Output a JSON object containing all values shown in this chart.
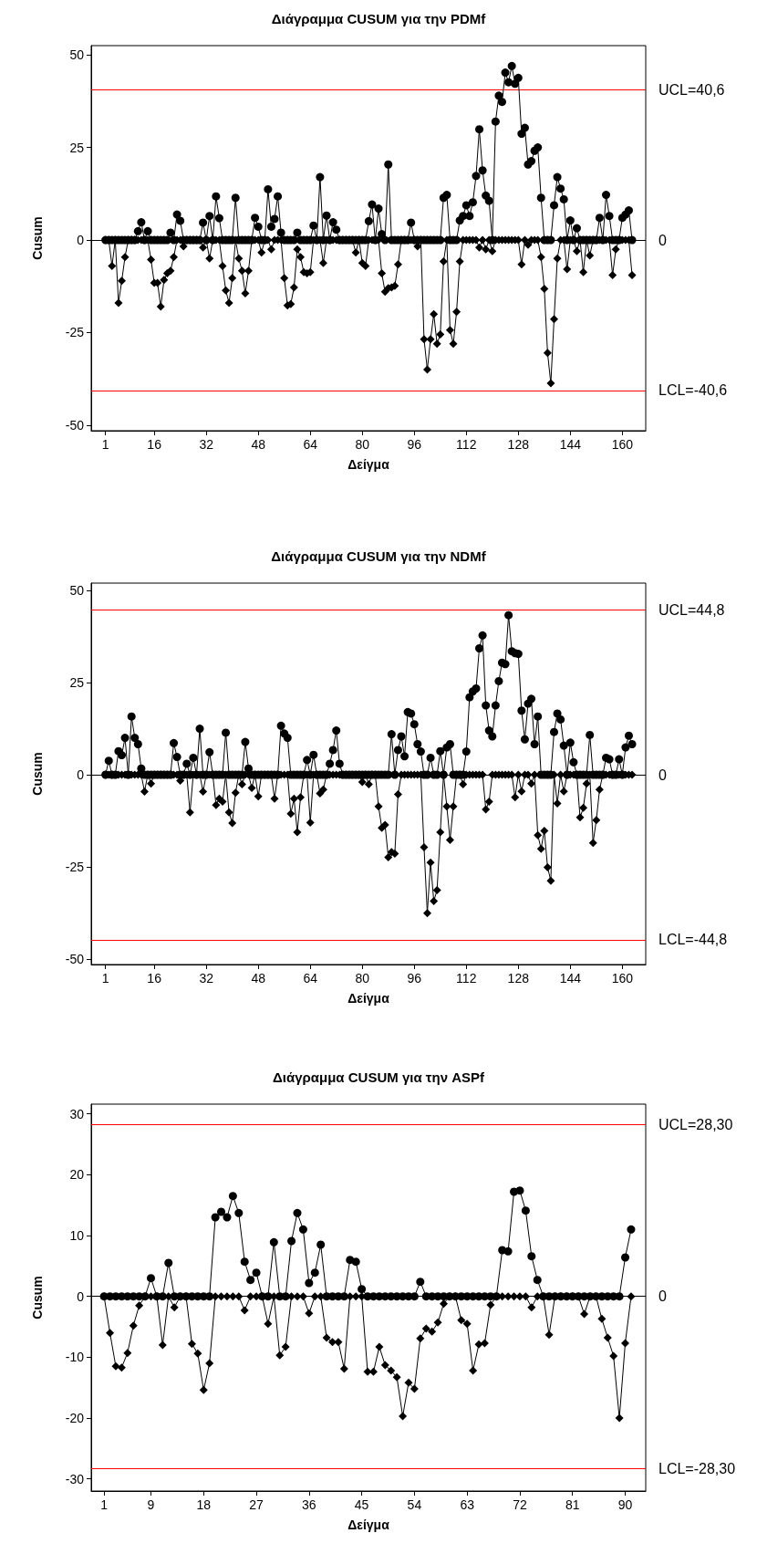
{
  "chart_data": [
    {
      "type": "line",
      "title": "Διάγραμμα CUSUM για την PDMf",
      "xlabel": "Δείγμα",
      "ylabel": "Cusum",
      "x": [
        1,
        2,
        3,
        4,
        5,
        6,
        7,
        8,
        9,
        10,
        11,
        12,
        13,
        14,
        15,
        16,
        17,
        18,
        19,
        20,
        21,
        22,
        23,
        24,
        25,
        26,
        27,
        28,
        29,
        30,
        31,
        32,
        33,
        34,
        35,
        36,
        37,
        38,
        39,
        40,
        41,
        42,
        43,
        44,
        45,
        46,
        47,
        48,
        49,
        50,
        51,
        52,
        53,
        54,
        55,
        56,
        57,
        58,
        59,
        60,
        61,
        62,
        63,
        64,
        65,
        66,
        67,
        68,
        69,
        70,
        71,
        72,
        73,
        74,
        75,
        76,
        77,
        78,
        79,
        80,
        81,
        82,
        83,
        84,
        85,
        86,
        87,
        88,
        89,
        90,
        91,
        92,
        93,
        94,
        95,
        96,
        97,
        98,
        99,
        100,
        101,
        102,
        103,
        104,
        105,
        106,
        107,
        108,
        109,
        110,
        111,
        112,
        113,
        114,
        115,
        116,
        117,
        118,
        119,
        120,
        121,
        122,
        123,
        124,
        125,
        126,
        127,
        128,
        129,
        130,
        131,
        132,
        133,
        134,
        135,
        136,
        137,
        138,
        139,
        140,
        141,
        142,
        143,
        144,
        145,
        146,
        147,
        148,
        149,
        150,
        151,
        152,
        153,
        154,
        155,
        156,
        157,
        158,
        159,
        160,
        161,
        162,
        163
      ],
      "xlim": [
        -3.4,
        167.2
      ],
      "xticks": [
        1,
        16,
        32,
        48,
        64,
        80,
        96,
        112,
        128,
        144,
        160
      ],
      "ylim": [
        -51.5,
        52.5
      ],
      "yticks": [
        -50,
        -25,
        0,
        25,
        50
      ],
      "series": [
        {
          "color": "#000000",
          "marker": "circle",
          "values": [
            0,
            0,
            0,
            0,
            0,
            0,
            0,
            0,
            0,
            0,
            2.4,
            4.8,
            0,
            2.4,
            0,
            0,
            0,
            0,
            0,
            0,
            2,
            0,
            6.9,
            5.2,
            0,
            0,
            0,
            0,
            0,
            0,
            4.7,
            0,
            6.5,
            0,
            11.8,
            5.9,
            0,
            0,
            0,
            0,
            11.4,
            0,
            0,
            0,
            0,
            0,
            6,
            3.6,
            0,
            0,
            13.7,
            3.6,
            5.7,
            11.8,
            2,
            0,
            0,
            0,
            0,
            2,
            0,
            0,
            0,
            0,
            3.9,
            0,
            17,
            0,
            6.6,
            0,
            4.8,
            2.8,
            0,
            0,
            0,
            0,
            0,
            0,
            0,
            0,
            0,
            5.1,
            9.6,
            0,
            8.5,
            1.6,
            0,
            20.4,
            0,
            0,
            0,
            0,
            0,
            0,
            4.7,
            0,
            0,
            0,
            0,
            0,
            0,
            0,
            0,
            0,
            11.4,
            12.2,
            0,
            0,
            0,
            5.3,
            6.5,
            9.4,
            6.5,
            10.2,
            17.3,
            29.9,
            18.8,
            12,
            10.6,
            0,
            32,
            39,
            37.3,
            45.2,
            42.6,
            47,
            42.2,
            43.8,
            28.7,
            30.3,
            20.4,
            21.3,
            24.1,
            25,
            11.4,
            0,
            0,
            0,
            9.4,
            17,
            13.9,
            11,
            0,
            5.3,
            0,
            3.2,
            0,
            0,
            0,
            0,
            0,
            0,
            6,
            0,
            12.2,
            6.5,
            0,
            0,
            0,
            6,
            6.9,
            8,
            0
          ]
        },
        {
          "color": "#000000",
          "marker": "diamond",
          "values": [
            0,
            0,
            -7,
            0,
            -17,
            -11,
            -4.6,
            0,
            0,
            0,
            0,
            0,
            0,
            0,
            -5.3,
            -11.6,
            -11.6,
            -18,
            -10.8,
            -9,
            -8.3,
            -4.6,
            0,
            0,
            -1.7,
            0,
            0,
            0,
            0,
            0,
            -2,
            0,
            -5,
            0,
            0,
            0,
            -7,
            -13.6,
            -17,
            -10.3,
            0,
            -5,
            -8.3,
            -14.4,
            -8.3,
            0,
            0,
            0,
            -3.4,
            0,
            0,
            -2.5,
            0,
            0,
            0,
            -10.3,
            -17.7,
            -17.3,
            -12.8,
            -2.5,
            -4.6,
            -8.7,
            -9,
            -8.7,
            0,
            0,
            0,
            -6.2,
            0,
            0,
            0,
            0,
            0,
            0,
            0,
            0,
            0,
            -3.4,
            0,
            -6.2,
            -7,
            0,
            0,
            0,
            0,
            -9,
            -14,
            -13,
            -12.8,
            -12.4,
            -6.6,
            0,
            0,
            0,
            0,
            0,
            -1.7,
            0,
            -26.8,
            -35,
            -26.8,
            -20,
            -28,
            -25.5,
            -5.8,
            0,
            -24.3,
            -28,
            -19.4,
            -5.8,
            0,
            0,
            0,
            0,
            0,
            -2,
            0,
            -2.5,
            0,
            -3,
            0,
            0,
            0,
            0,
            0,
            0,
            0,
            0,
            -6.6,
            0,
            -1.3,
            0,
            0,
            0,
            -4.6,
            -13.2,
            -30.5,
            -38.7,
            -21.4,
            -5,
            0,
            0,
            -7.9,
            0,
            0,
            -3,
            0,
            -8.7,
            0,
            -4.2,
            0,
            0,
            0,
            0,
            0,
            0,
            -9.5,
            -2.5,
            0,
            0,
            0,
            0,
            -9.5
          ]
        }
      ],
      "ref_lines": [
        {
          "axis": "y",
          "value": 40.6,
          "label": "UCL=40,6",
          "color": "#ff0000"
        },
        {
          "axis": "y",
          "value": 0,
          "label": "0",
          "color": "#000000"
        },
        {
          "axis": "y",
          "value": -40.6,
          "label": "LCL=-40,6",
          "color": "#ff0000"
        }
      ]
    },
    {
      "type": "line",
      "title": "Διάγραμμα CUSUM για την NDMf",
      "xlabel": "Δείγμα",
      "ylabel": "Cusum",
      "x": [
        1,
        2,
        3,
        4,
        5,
        6,
        7,
        8,
        9,
        10,
        11,
        12,
        13,
        14,
        15,
        16,
        17,
        18,
        19,
        20,
        21,
        22,
        23,
        24,
        25,
        26,
        27,
        28,
        29,
        30,
        31,
        32,
        33,
        34,
        35,
        36,
        37,
        38,
        39,
        40,
        41,
        42,
        43,
        44,
        45,
        46,
        47,
        48,
        49,
        50,
        51,
        52,
        53,
        54,
        55,
        56,
        57,
        58,
        59,
        60,
        61,
        62,
        63,
        64,
        65,
        66,
        67,
        68,
        69,
        70,
        71,
        72,
        73,
        74,
        75,
        76,
        77,
        78,
        79,
        80,
        81,
        82,
        83,
        84,
        85,
        86,
        87,
        88,
        89,
        90,
        91,
        92,
        93,
        94,
        95,
        96,
        97,
        98,
        99,
        100,
        101,
        102,
        103,
        104,
        105,
        106,
        107,
        108,
        109,
        110,
        111,
        112,
        113,
        114,
        115,
        116,
        117,
        118,
        119,
        120,
        121,
        122,
        123,
        124,
        125,
        126,
        127,
        128,
        129,
        130,
        131,
        132,
        133,
        134,
        135,
        136,
        137,
        138,
        139,
        140,
        141,
        142,
        143,
        144,
        145,
        146,
        147,
        148,
        149,
        150,
        151,
        152,
        153,
        154,
        155,
        156,
        157,
        158,
        159,
        160,
        161,
        162,
        163
      ],
      "xlim": [
        -3.4,
        167.2
      ],
      "xticks": [
        1,
        16,
        32,
        48,
        64,
        80,
        96,
        112,
        128,
        144,
        160
      ],
      "ylim": [
        -51.5,
        52
      ],
      "yticks": [
        -50,
        -25,
        0,
        25,
        50
      ],
      "series": [
        {
          "color": "#000000",
          "marker": "circle",
          "values": [
            0,
            3.8,
            0,
            0,
            6.4,
            5.3,
            10,
            0,
            15.8,
            10,
            8.3,
            1.7,
            0,
            0,
            0,
            0,
            0,
            0,
            0,
            0,
            0,
            8.6,
            4.8,
            0,
            0,
            3,
            0,
            4.6,
            0,
            12.5,
            0,
            0,
            6.1,
            0,
            0,
            0,
            0,
            11.4,
            0,
            0,
            0,
            0,
            0,
            8.9,
            1.7,
            0,
            0,
            0,
            0,
            0,
            0,
            0,
            0,
            0,
            13.3,
            11.2,
            10,
            0,
            0,
            0,
            0,
            0,
            4,
            0,
            5.4,
            0,
            0,
            0,
            0,
            3,
            6.7,
            12,
            3,
            0,
            0,
            0,
            0,
            0,
            0,
            0,
            0,
            0,
            0,
            0,
            0,
            0,
            0,
            0,
            11,
            0,
            6.7,
            10.4,
            5,
            17,
            16.6,
            13.7,
            8.3,
            6.3,
            0,
            0,
            4.6,
            0,
            0,
            6.4,
            0,
            7.4,
            8.3,
            0,
            0,
            0,
            0,
            6.3,
            21,
            22.6,
            23.4,
            34.3,
            37.8,
            18.8,
            12,
            10.4,
            18.8,
            25.4,
            30.4,
            30,
            43.3,
            33.5,
            33,
            32.8,
            17.4,
            9.6,
            19.3,
            20.6,
            8.3,
            15.8,
            0,
            0,
            0,
            0,
            11.6,
            16.6,
            15,
            7.9,
            0,
            8.7,
            3.4,
            0,
            0,
            0,
            0,
            10.8,
            0,
            0,
            0,
            0,
            4.6,
            4.2,
            0,
            0,
            4.2,
            0,
            7.4,
            10.6,
            8.3
          ]
        },
        {
          "color": "#000000",
          "marker": "diamond",
          "values": [
            0,
            0,
            0,
            0,
            0,
            0,
            0,
            0,
            0,
            0,
            0,
            0,
            -4.6,
            0,
            -2.4,
            0,
            0,
            0,
            0,
            0,
            0,
            0,
            0,
            -1.6,
            0,
            0,
            -10.2,
            0,
            0,
            0,
            -4.6,
            0,
            0,
            0,
            -8.2,
            -6.5,
            -7.3,
            0,
            -10.2,
            -13.1,
            -4.9,
            0,
            -2.6,
            0,
            0,
            -3.6,
            0,
            -5.9,
            0,
            0,
            0,
            0,
            -6.5,
            0,
            0,
            0,
            0,
            -10.6,
            -6.5,
            -15.6,
            -6.1,
            0,
            0,
            -13,
            0,
            0,
            -5.1,
            -4,
            0,
            0,
            0,
            0,
            0,
            0,
            0,
            0,
            0,
            0,
            0,
            -2,
            0,
            -2.6,
            0,
            0,
            -8.6,
            -14.4,
            -13.6,
            -22.4,
            -21,
            -21.4,
            -5.3,
            0,
            0,
            0,
            0,
            0,
            0,
            0,
            -19.7,
            -37.6,
            -23.8,
            -34.3,
            -31.3,
            -15.6,
            0,
            -8.6,
            -17.7,
            -8.6,
            0,
            0,
            -2.6,
            0,
            0,
            0,
            0,
            0,
            0,
            -9.4,
            -7.3,
            0,
            0,
            0,
            0,
            0,
            0,
            0,
            -6.1,
            0,
            -4.5,
            0,
            0,
            -2.4,
            0,
            -16.4,
            -20.1,
            -15.2,
            -25.1,
            -28.8,
            0,
            -7.8,
            0,
            -4.5,
            0,
            0,
            0,
            0,
            -11.6,
            -9,
            -2.4,
            0,
            -18.5,
            -12.3,
            -4,
            0,
            0,
            0,
            0,
            0,
            0,
            0,
            0,
            0,
            0
          ]
        }
      ],
      "ref_lines": [
        {
          "axis": "y",
          "value": 44.8,
          "label": "UCL=44,8",
          "color": "#ff0000"
        },
        {
          "axis": "y",
          "value": 0,
          "label": "0",
          "color": "#000000"
        },
        {
          "axis": "y",
          "value": -44.8,
          "label": "LCL=-44,8",
          "color": "#ff0000"
        }
      ]
    },
    {
      "type": "line",
      "title": "Διάγραμμα CUSUM για την ASPf",
      "xlabel": "Δείγμα",
      "ylabel": "Cusum",
      "x": [
        1,
        2,
        3,
        4,
        5,
        6,
        7,
        8,
        9,
        10,
        11,
        12,
        13,
        14,
        15,
        16,
        17,
        18,
        19,
        20,
        21,
        22,
        23,
        24,
        25,
        26,
        27,
        28,
        29,
        30,
        31,
        32,
        33,
        34,
        35,
        36,
        37,
        38,
        39,
        40,
        41,
        42,
        43,
        44,
        45,
        46,
        47,
        48,
        49,
        50,
        51,
        52,
        53,
        54,
        55,
        56,
        57,
        58,
        59,
        60,
        61,
        62,
        63,
        64,
        65,
        66,
        67,
        68,
        69,
        70,
        71,
        72,
        73,
        74,
        75,
        76,
        77,
        78,
        79,
        80,
        81,
        82,
        83,
        84,
        85,
        86,
        87,
        88,
        89,
        90,
        91
      ],
      "xlim": [
        -1.2,
        93.5
      ],
      "xticks": [
        1,
        9,
        18,
        27,
        36,
        45,
        54,
        63,
        72,
        81,
        90
      ],
      "ylim": [
        -32,
        31.6
      ],
      "yticks": [
        -30,
        -20,
        -10,
        0,
        10,
        20,
        30
      ],
      "series": [
        {
          "color": "#000000",
          "marker": "diamond",
          "values": [
            0,
            -6,
            -11.5,
            -11.7,
            -9.3,
            -4.8,
            -1.5,
            0,
            0,
            0,
            -8,
            0,
            -1.8,
            0,
            0,
            -7.8,
            -9.4,
            -15.4,
            -11,
            0,
            0,
            0,
            0,
            0,
            -2.3,
            0,
            0,
            0,
            -4.5,
            0,
            -9.7,
            -8.3,
            0,
            0,
            0,
            -2.8,
            0,
            0,
            -6.8,
            -7.5,
            -7.5,
            -11.9,
            0,
            0,
            0,
            -12.4,
            -12.4,
            -8.3,
            -11.3,
            -12.2,
            -13.3,
            -19.7,
            -14.2,
            -15.2,
            -6.9,
            -5.3,
            -5.8,
            -4.3,
            -1.2,
            0,
            0,
            -3.9,
            -4.5,
            -12.2,
            -7.9,
            -7.7,
            -1.4,
            0,
            0,
            0,
            0,
            0,
            0,
            -1.8,
            0,
            0,
            -6.3,
            0,
            0,
            0,
            0,
            0,
            -2.9,
            0,
            0,
            -3.7,
            -6.8,
            -9.8,
            -20,
            -7.7,
            0
          ]
        },
        {
          "color": "#000000",
          "marker": "circle",
          "values": [
            0,
            0,
            0,
            0,
            0,
            0,
            0,
            0,
            3,
            0,
            0,
            5.5,
            0,
            0,
            0,
            0,
            0,
            0,
            0,
            13,
            13.9,
            13,
            16.5,
            13.7,
            5.7,
            2.7,
            3.9,
            0,
            0,
            8.9,
            0,
            0,
            9.1,
            13.7,
            11,
            2.2,
            3.9,
            8.5,
            0,
            0,
            0,
            0,
            6,
            5.7,
            1.2,
            0,
            0,
            0,
            0,
            0,
            0,
            0,
            0,
            0,
            2.4,
            0,
            0,
            0,
            0,
            0,
            0,
            0,
            0,
            0,
            0,
            0,
            0,
            0,
            7.6,
            7.4,
            17.2,
            17.4,
            14.1,
            6.6,
            2.7,
            0,
            0,
            0,
            0,
            0,
            0,
            0,
            0,
            0,
            0,
            0,
            0,
            0,
            0,
            6.4,
            11
          ]
        }
      ],
      "ref_lines": [
        {
          "axis": "y",
          "value": 28.3,
          "label": "UCL=28,30",
          "color": "#ff0000"
        },
        {
          "axis": "y",
          "value": 0,
          "label": "0",
          "color": "#000000"
        },
        {
          "axis": "y",
          "value": -28.3,
          "label": "LCL=-28,30",
          "color": "#ff0000"
        }
      ]
    }
  ]
}
